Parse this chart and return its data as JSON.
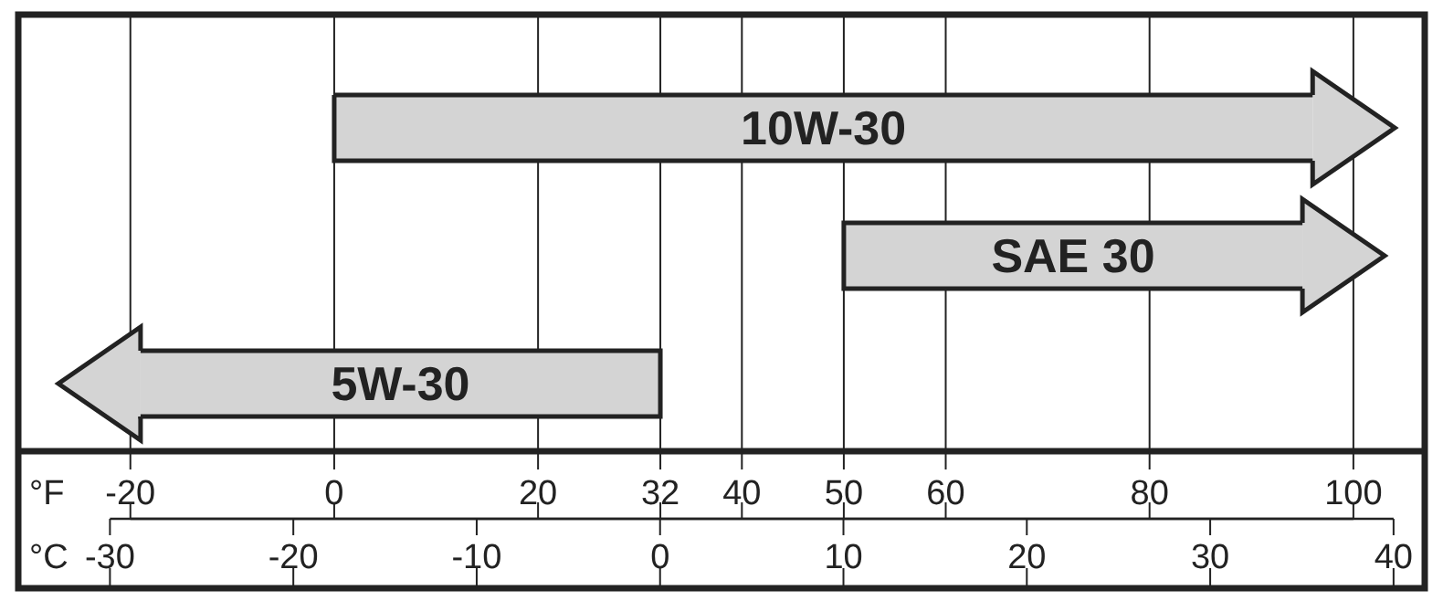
{
  "chart_data": {
    "type": "bar",
    "orientation": "horizontal",
    "categories": [
      "10W-30",
      "SAE 30",
      "5W-30"
    ],
    "base": [
      0,
      50,
      32
    ],
    "values": [
      96,
      45,
      -51
    ],
    "color": "#d4d4d4",
    "xlabel": "°F",
    "x2label": "°C",
    "xlim": [
      -31,
      107
    ],
    "xticks": [
      -20,
      0,
      20,
      32,
      40,
      50,
      60,
      80,
      100
    ],
    "x2lim": [
      -35,
      41.7
    ],
    "x2ticks": [
      -30,
      -20,
      -10,
      0,
      10,
      20,
      30,
      40
    ],
    "grid": "x"
  }
}
